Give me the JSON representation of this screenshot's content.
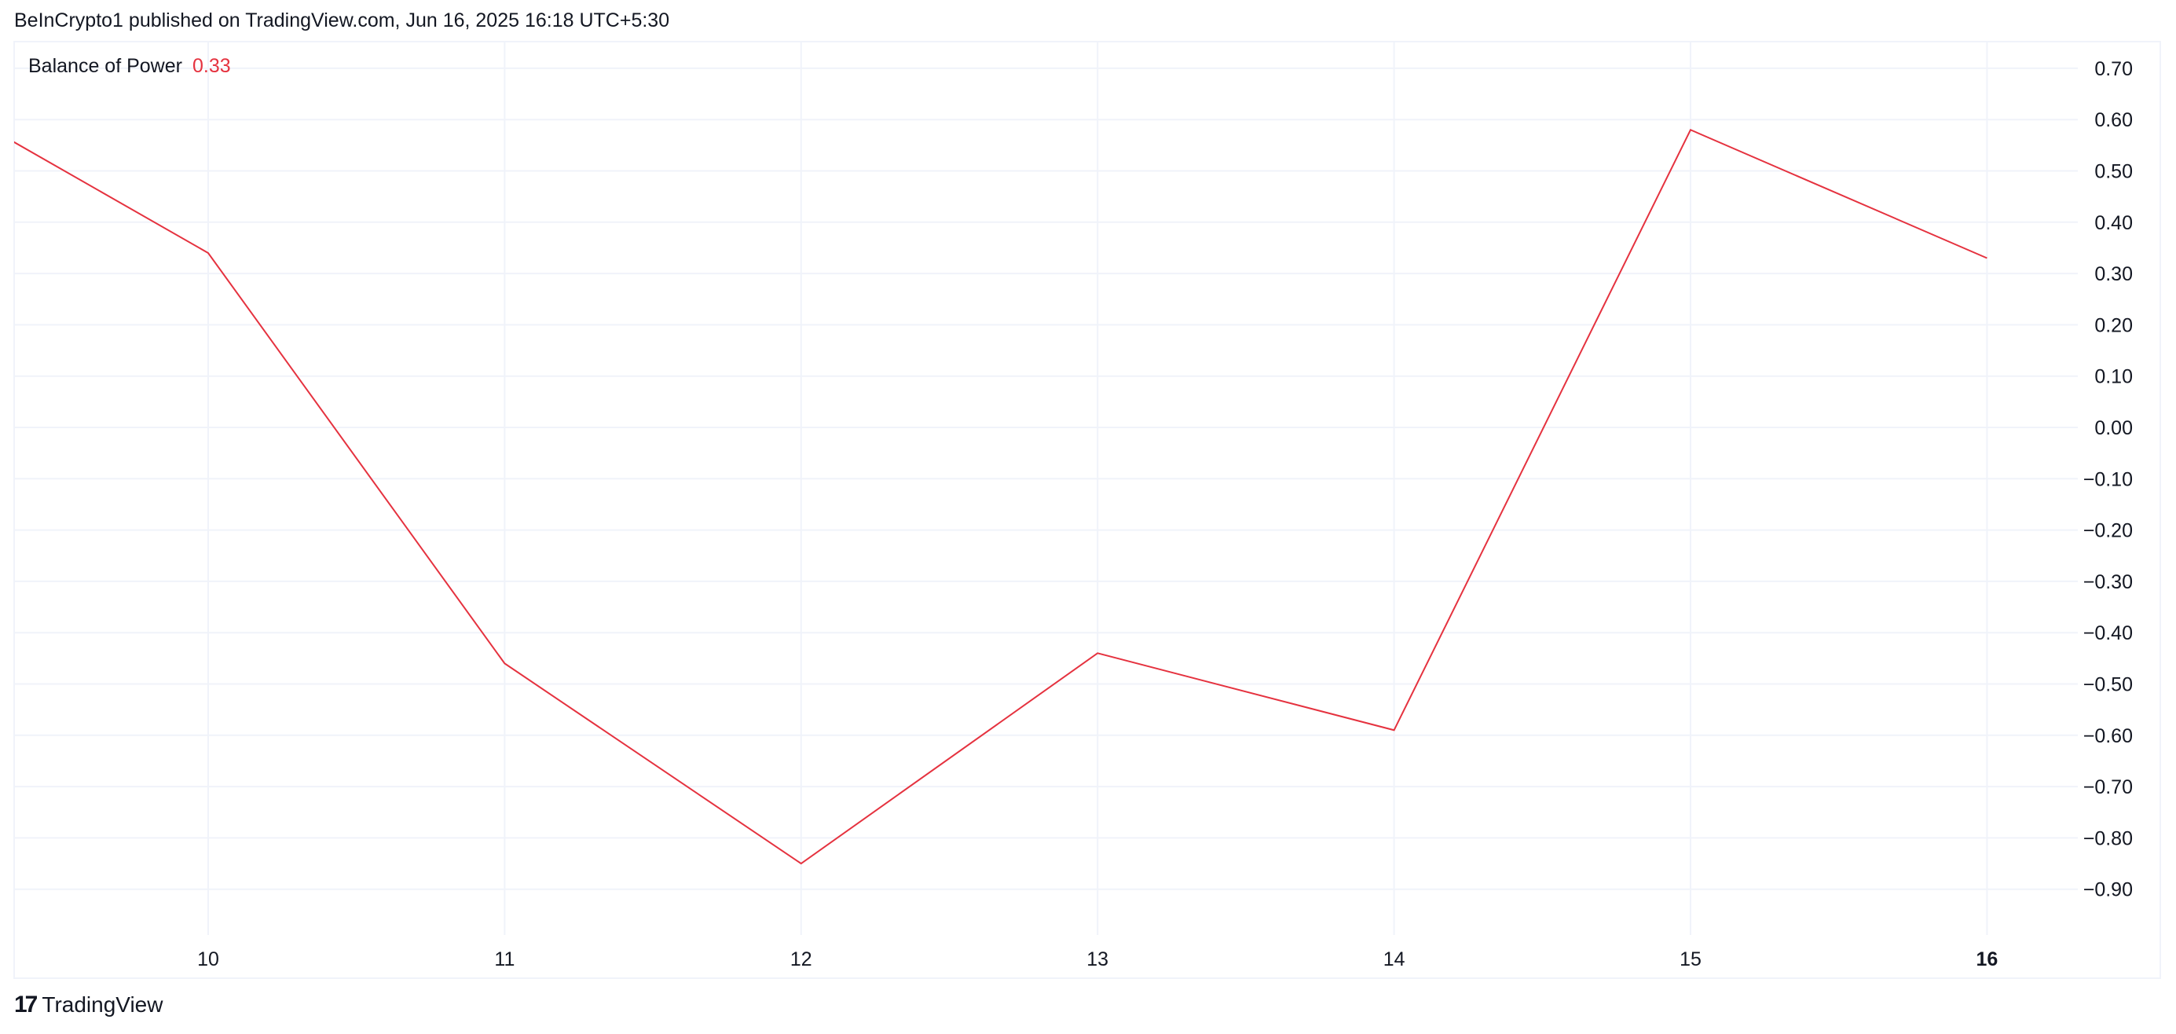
{
  "header": {
    "publish_line": "BeInCrypto1 published on TradingView.com, Jun 16, 2025 16:18 UTC+5:30"
  },
  "footer": {
    "brand": "TradingView",
    "logo_icon": "tradingview-logo-icon"
  },
  "chart_data": {
    "type": "line",
    "legend": {
      "name": "Balance of Power",
      "value": "0.33",
      "placement": "top-left"
    },
    "x": [
      9,
      10,
      11,
      12,
      13,
      14,
      15,
      16
    ],
    "values": [
      0.67,
      0.34,
      -0.46,
      -0.85,
      -0.44,
      -0.59,
      0.58,
      0.33
    ],
    "x_ticks": [
      "10",
      "11",
      "12",
      "13",
      "14",
      "15",
      "16"
    ],
    "x_tick_values": [
      10,
      11,
      12,
      13,
      14,
      15,
      16
    ],
    "y_ticks": [
      "0.70",
      "0.60",
      "0.50",
      "0.40",
      "0.30",
      "0.20",
      "0.10",
      "0.00",
      "−0.10",
      "−0.20",
      "−0.30",
      "−0.40",
      "−0.50",
      "−0.60",
      "−0.70",
      "−0.80",
      "−0.90"
    ],
    "y_tick_values": [
      0.7,
      0.6,
      0.5,
      0.4,
      0.3,
      0.2,
      0.1,
      0,
      -0.1,
      -0.2,
      -0.3,
      -0.4,
      -0.5,
      -0.6,
      -0.7,
      -0.8,
      -0.9
    ],
    "xlim": [
      9.35,
      16.3
    ],
    "ylim": [
      -1.0,
      0.76
    ],
    "grid": true,
    "line_color": "#e5323f",
    "y_axis_side": "right"
  }
}
